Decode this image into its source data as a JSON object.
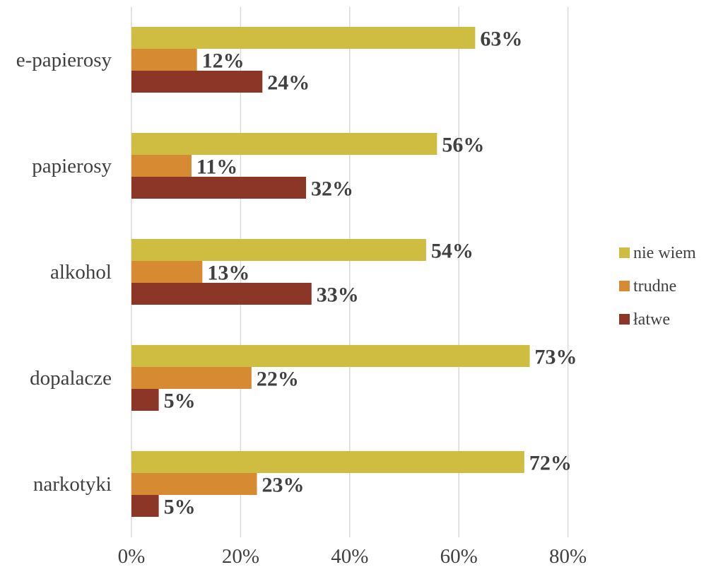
{
  "chart_data": {
    "type": "bar",
    "orientation": "horizontal",
    "categories": [
      "e-papierosy",
      "papierosy",
      "alkohol",
      "dopalacze",
      "narkotyki"
    ],
    "series": [
      {
        "name": "nie wiem",
        "color": "#cfbd42",
        "values": [
          63,
          56,
          54,
          73,
          72
        ],
        "labels": [
          "63%",
          "56%",
          "54%",
          "73%",
          "72%"
        ]
      },
      {
        "name": "trudne",
        "color": "#d68a32",
        "values": [
          12,
          11,
          13,
          22,
          23
        ],
        "labels": [
          "12%",
          "11%",
          "13%",
          "22%",
          "23%"
        ]
      },
      {
        "name": "łatwe",
        "color": "#8b3626",
        "values": [
          24,
          32,
          33,
          5,
          5
        ],
        "labels": [
          "24%",
          "32%",
          "33%",
          "5%",
          "5%"
        ]
      }
    ],
    "xlim": [
      0,
      80
    ],
    "xticks": [
      0,
      20,
      40,
      60,
      80
    ],
    "xtick_labels": [
      "0%",
      "20%",
      "40%",
      "60%",
      "80%"
    ],
    "grid": true,
    "legend_position": "right"
  }
}
